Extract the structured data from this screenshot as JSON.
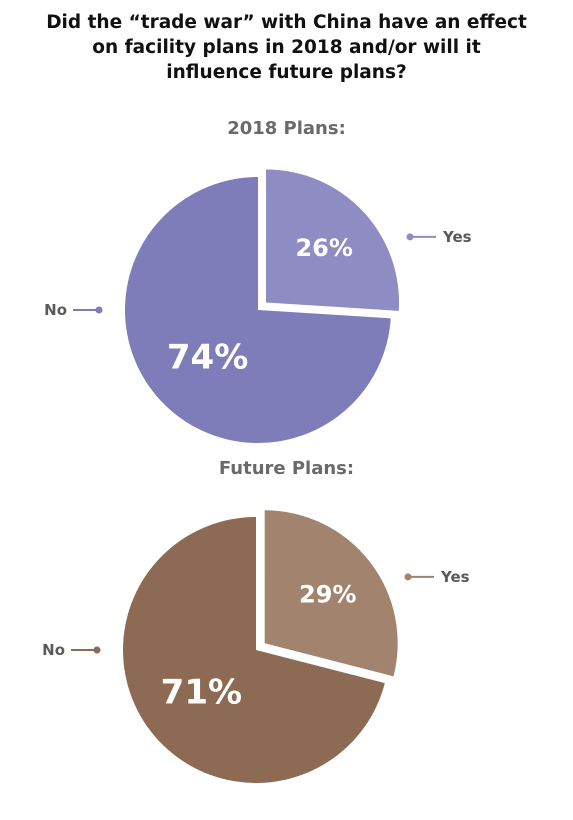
{
  "title_lines": [
    "Did the “trade war” with China have an effect",
    "on facility plans in 2018 and/or will it",
    "influence future plans?"
  ],
  "chart_data": [
    {
      "type": "pie",
      "title": "2018 Plans:",
      "slices": [
        {
          "label": "Yes",
          "value": 26,
          "display": "26%",
          "color": "#8e8cc3",
          "exploded": true
        },
        {
          "label": "No",
          "value": 74,
          "display": "74%",
          "color": "#7e7cb9",
          "exploded": false
        }
      ]
    },
    {
      "type": "pie",
      "title": "Future Plans:",
      "slices": [
        {
          "label": "Yes",
          "value": 29,
          "display": "29%",
          "color": "#a2846e",
          "exploded": true
        },
        {
          "label": "No",
          "value": 71,
          "display": "71%",
          "color": "#8c6a54",
          "exploded": false
        }
      ]
    }
  ]
}
